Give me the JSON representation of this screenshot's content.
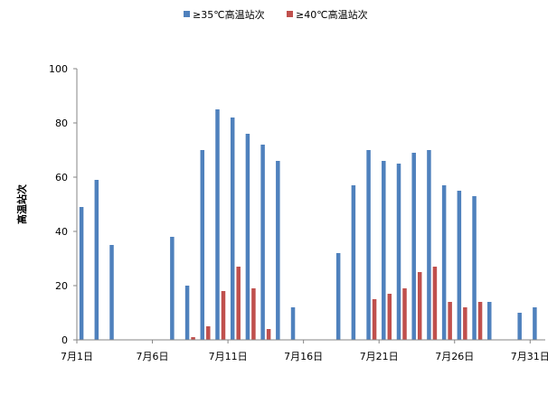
{
  "chart_data": {
    "type": "bar",
    "title": "",
    "xlabel": "",
    "ylabel": "高温站次",
    "ylim": [
      0,
      100
    ],
    "yticks": [
      0,
      20,
      40,
      60,
      80,
      100
    ],
    "categories": [
      "7月1日",
      "7月2日",
      "7月3日",
      "7月4日",
      "7月5日",
      "7月6日",
      "7月7日",
      "7月8日",
      "7月9日",
      "7月10日",
      "7月11日",
      "7月12日",
      "7月13日",
      "7月14日",
      "7月15日",
      "7月16日",
      "7月17日",
      "7月18日",
      "7月19日",
      "7月20日",
      "7月21日",
      "7月22日",
      "7月23日",
      "7月24日",
      "7月25日",
      "7月26日",
      "7月27日",
      "7月28日",
      "7月29日",
      "7月30日",
      "7月31日"
    ],
    "tick_labels": [
      "7月1日",
      "7月6日",
      "7月11日",
      "7月16日",
      "7月21日",
      "7月26日",
      "7月31日"
    ],
    "series": [
      {
        "name": "≥35℃高温站次",
        "color": "#4f81bd",
        "values": [
          49,
          59,
          35,
          0,
          0,
          0,
          38,
          20,
          70,
          85,
          82,
          76,
          72,
          66,
          12,
          0,
          0,
          32,
          57,
          70,
          66,
          65,
          69,
          70,
          57,
          55,
          53,
          14,
          0,
          10,
          12
        ]
      },
      {
        "name": "≥40℃高温站次",
        "color": "#c0504d",
        "values": [
          0,
          0,
          0,
          0,
          0,
          0,
          0,
          1,
          5,
          18,
          27,
          19,
          4,
          0,
          0,
          0,
          0,
          0,
          0,
          15,
          17,
          19,
          25,
          27,
          14,
          12,
          14,
          0,
          0,
          0,
          0
        ]
      }
    ],
    "legend_position": "top",
    "grid": false
  }
}
